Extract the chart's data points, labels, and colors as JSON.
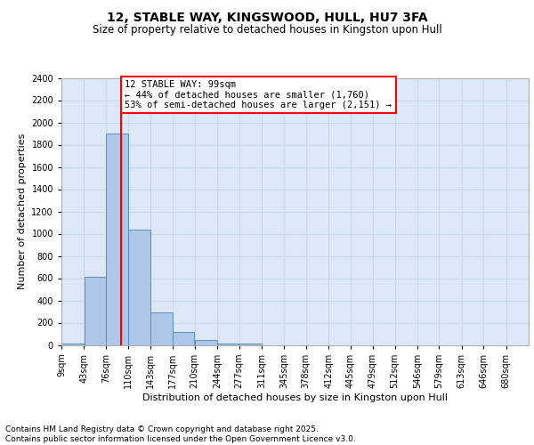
{
  "title": "12, STABLE WAY, KINGSWOOD, HULL, HU7 3FA",
  "subtitle": "Size of property relative to detached houses in Kingston upon Hull",
  "xlabel": "Distribution of detached houses by size in Kingston upon Hull",
  "ylabel": "Number of detached properties",
  "bin_labels": [
    "9sqm",
    "43sqm",
    "76sqm",
    "110sqm",
    "143sqm",
    "177sqm",
    "210sqm",
    "244sqm",
    "277sqm",
    "311sqm",
    "345sqm",
    "378sqm",
    "412sqm",
    "445sqm",
    "479sqm",
    "512sqm",
    "546sqm",
    "579sqm",
    "613sqm",
    "646sqm",
    "680sqm"
  ],
  "bin_edges": [
    9,
    43,
    76,
    110,
    143,
    177,
    210,
    244,
    277,
    311,
    345,
    378,
    412,
    445,
    479,
    512,
    546,
    579,
    613,
    646,
    680
  ],
  "bar_heights": [
    15,
    610,
    1900,
    1040,
    290,
    115,
    45,
    15,
    15,
    0,
    0,
    0,
    0,
    0,
    0,
    0,
    0,
    0,
    0,
    0
  ],
  "bar_color": "#aec6e8",
  "bar_edge_color": "#5a8fc0",
  "grid_color": "#c8d8e8",
  "background_color": "#dce8f5",
  "property_line_x": 99,
  "property_line_color": "red",
  "annotation_text": "12 STABLE WAY: 99sqm\n← 44% of detached houses are smaller (1,760)\n53% of semi-detached houses are larger (2,151) →",
  "annotation_box_color": "red",
  "annotation_box_fill": "white",
  "ylim": [
    0,
    2400
  ],
  "yticks": [
    0,
    200,
    400,
    600,
    800,
    1000,
    1200,
    1400,
    1600,
    1800,
    2000,
    2200,
    2400
  ],
  "footer_line1": "Contains HM Land Registry data © Crown copyright and database right 2025.",
  "footer_line2": "Contains public sector information licensed under the Open Government Licence v3.0.",
  "title_fontsize": 10,
  "subtitle_fontsize": 8.5,
  "axis_label_fontsize": 8,
  "tick_fontsize": 7,
  "footer_fontsize": 6.5,
  "annotation_fontsize": 7.5
}
